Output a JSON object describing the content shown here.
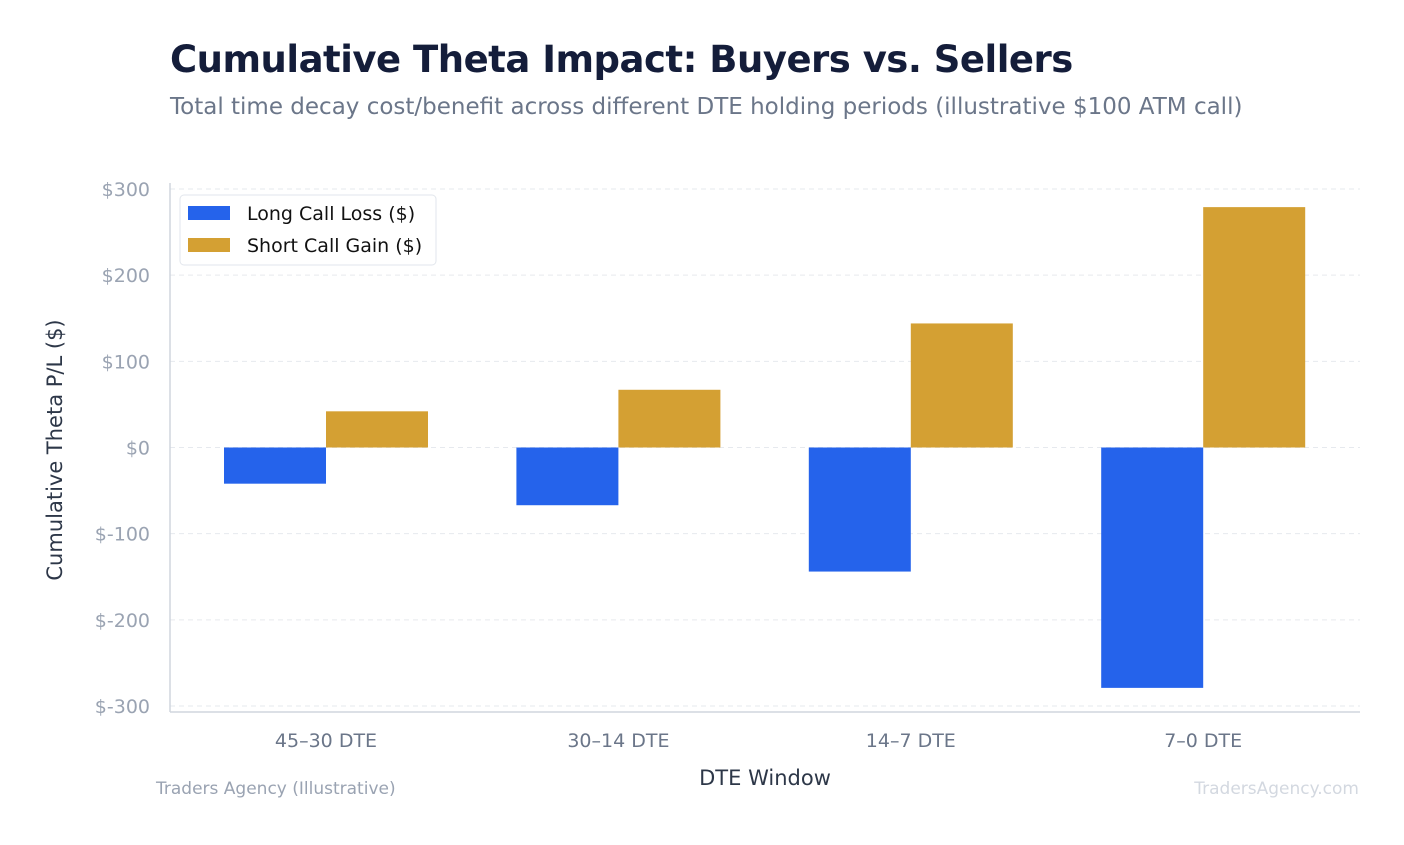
{
  "chart_data": {
    "type": "bar",
    "title": "Cumulative Theta Impact: Buyers vs. Sellers",
    "subtitle": "Total time decay cost/benefit across different DTE holding periods (illustrative $100 ATM call)",
    "xlabel": "DTE Window",
    "ylabel": "Cumulative Theta P/L ($)",
    "categories": [
      "45–30 DTE",
      "30–14 DTE",
      "14–7 DTE",
      "7–0 DTE"
    ],
    "series": [
      {
        "name": "Long Call Loss ($)",
        "color": "#2563eb",
        "values": [
          -42,
          -67,
          -144,
          -279
        ]
      },
      {
        "name": "Short Call Gain ($)",
        "color": "#d4a033",
        "values": [
          42,
          67,
          144,
          279
        ]
      }
    ],
    "ylim": [
      -307,
      307
    ],
    "yticks": [
      -300,
      -200,
      -100,
      0,
      100,
      200,
      300
    ],
    "ytick_labels": [
      "$-300",
      "$-200",
      "$-100",
      "$0",
      "$100",
      "$200",
      "$300"
    ],
    "grid": true,
    "legend_position": "top-left"
  },
  "footer": {
    "left": "Traders Agency (Illustrative)",
    "right": "TradersAgency.com"
  }
}
